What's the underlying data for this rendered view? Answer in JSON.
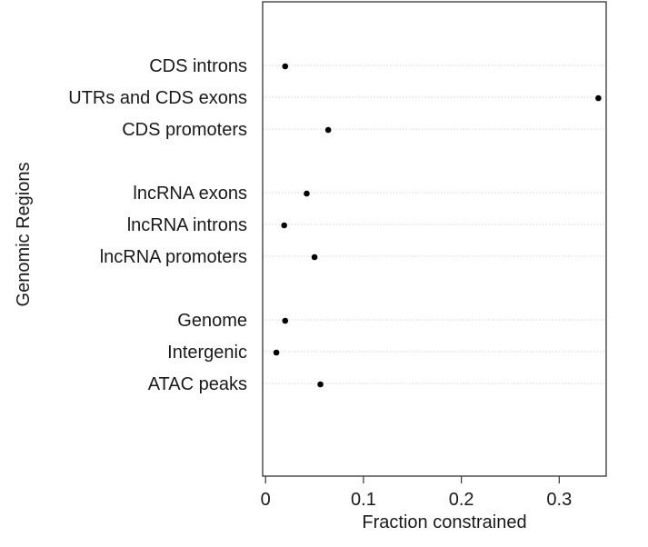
{
  "chart_data": {
    "type": "scatter",
    "title": "",
    "xlabel": "Fraction constrained",
    "ylabel": "Genomic Regions",
    "xlim": [
      -0.003,
      0.348
    ],
    "x_ticks": [
      0,
      0.1,
      0.2,
      0.3
    ],
    "x_tick_labels": [
      "0",
      "0.1",
      "0.2",
      "0.3"
    ],
    "grid": "horizontal dotted lines at each category",
    "legend": "none",
    "point_color": "#000000",
    "categories": [
      "CDS introns",
      "UTRs and CDS exons",
      "CDS promoters",
      "lncRNA exons",
      "lncRNA introns",
      "lncRNA promoters",
      "Genome",
      "Intergenic",
      "ATAC peaks"
    ],
    "groups": [
      [
        "CDS introns",
        "UTRs and CDS exons",
        "CDS promoters"
      ],
      [
        "lncRNA exons",
        "lncRNA introns",
        "lncRNA promoters"
      ],
      [
        "Genome",
        "Intergenic",
        "ATAC peaks"
      ]
    ],
    "values": [
      0.02,
      0.34,
      0.064,
      0.042,
      0.019,
      0.05,
      0.02,
      0.011,
      0.056
    ]
  }
}
